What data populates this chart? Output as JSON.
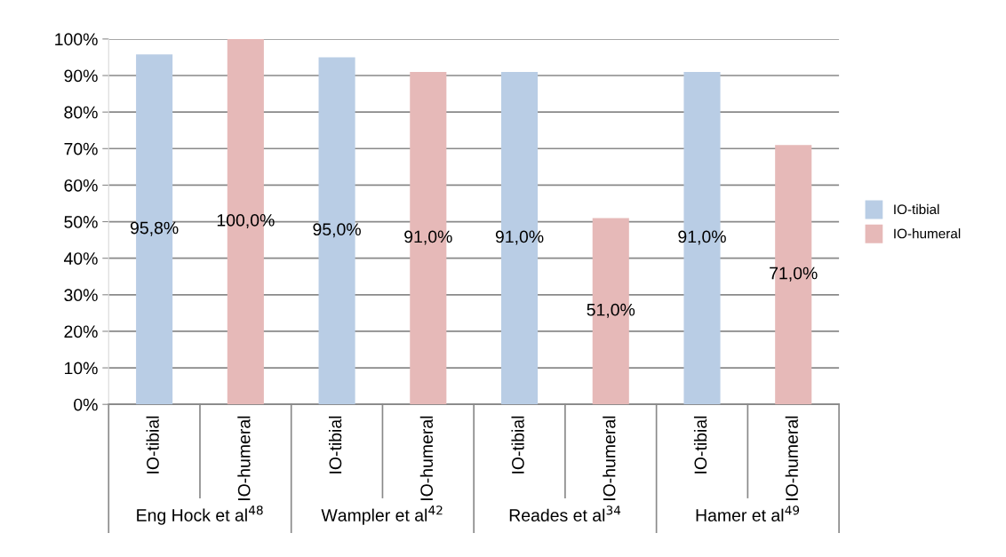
{
  "chart_data": {
    "type": "bar",
    "categories": [
      "IO-tibial",
      "IO-humeral",
      "IO-tibial",
      "IO-humeral",
      "IO-tibial",
      "IO-humeral",
      "IO-tibial",
      "IO-humeral"
    ],
    "series": [
      {
        "name": "IO-tibial",
        "color": "#b9cde5",
        "values": [
          95.8,
          null,
          95.0,
          null,
          91.0,
          null,
          91.0,
          null
        ],
        "value_labels": [
          "95,8%",
          null,
          "95,0%",
          null,
          "91,0%",
          null,
          "91,0%",
          null
        ]
      },
      {
        "name": "IO-humeral",
        "color": "#e6b9b8",
        "values": [
          null,
          100.0,
          null,
          91.0,
          null,
          51.0,
          null,
          71.0
        ],
        "value_labels": [
          null,
          "100,0%",
          null,
          "91,0%",
          null,
          "51,0%",
          null,
          "71,0%"
        ]
      }
    ],
    "annotations": [
      "Eng Hock et al$^{48}$",
      "Wampler et al$^{42}$",
      "Reades et al$^{34}$",
      "Hamer et al$^{49}$"
    ],
    "ylim": [
      0,
      100
    ],
    "yticks": [
      {
        "value": 0,
        "label": "0%"
      },
      {
        "value": 10,
        "label": "10%"
      },
      {
        "value": 20,
        "label": "20%"
      },
      {
        "value": 30,
        "label": "30%"
      },
      {
        "value": 40,
        "label": "40%"
      },
      {
        "value": 50,
        "label": "50%"
      },
      {
        "value": 60,
        "label": "60%"
      },
      {
        "value": 70,
        "label": "70%"
      },
      {
        "value": 80,
        "label": "80%"
      },
      {
        "value": 90,
        "label": "90%"
      },
      {
        "value": 100,
        "label": "100%"
      }
    ],
    "grid": "y",
    "legend": "right"
  }
}
